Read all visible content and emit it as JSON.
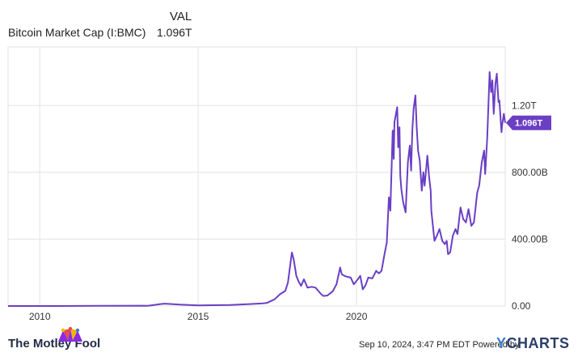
{
  "legend": {
    "column_header": "VAL",
    "series_name": "Bitcoin Market Cap (I:BMC)",
    "series_value": "1.096T"
  },
  "footer": {
    "brand": "The Motley Fool",
    "timestamp": "Sep 10, 2024, 3:47 PM EDT",
    "powered_by": "Powered by",
    "ycharts_y": "Y",
    "ycharts_rest": "CHARTS"
  },
  "colors": {
    "line": "#6a3fc4",
    "plot_bg": "#ffffff",
    "grid": "#e3e3e3",
    "badge": "#6a3fc4"
  },
  "chart_data": {
    "type": "line",
    "x_axis": {
      "type": "date",
      "range": [
        "2009-01-01",
        "2024-09-10"
      ],
      "ticks": [
        "2010",
        "2015",
        "2020"
      ]
    },
    "y_axis": {
      "range": [
        0,
        1550
      ],
      "unit": "billion USD",
      "ticks": [
        0,
        400,
        800,
        1200
      ],
      "tick_labels": [
        "0.00",
        "400.00B",
        "800.00B",
        "1.20T"
      ],
      "position": "right"
    },
    "grid": true,
    "current_value_label": "1.096T",
    "current_value": 1096,
    "series": [
      {
        "x": [
          "2009-01-01",
          "2010-07-01",
          "2012-01-01",
          "2013-04-01",
          "2013-06-01",
          "2013-11-01",
          "2013-12-15",
          "2014-06-01",
          "2015-01-01",
          "2016-01-01",
          "2016-07-01",
          "2017-01-01",
          "2017-03-01",
          "2017-06-01",
          "2017-08-01",
          "2017-10-01",
          "2017-11-01",
          "2017-12-17",
          "2018-01-06",
          "2018-02-06",
          "2018-03-01",
          "2018-04-01",
          "2018-05-05",
          "2018-06-15",
          "2018-08-01",
          "2018-09-15",
          "2018-11-20",
          "2018-12-15",
          "2019-02-01",
          "2019-04-01",
          "2019-05-15",
          "2019-06-26",
          "2019-07-15",
          "2019-08-15",
          "2019-09-15",
          "2019-10-26",
          "2019-12-01",
          "2020-01-15",
          "2020-02-13",
          "2020-03-13",
          "2020-04-15",
          "2020-05-15",
          "2020-07-01",
          "2020-08-15",
          "2020-09-15",
          "2020-10-15",
          "2020-11-15",
          "2020-12-15",
          "2021-01-08",
          "2021-01-25",
          "2021-02-21",
          "2021-03-05",
          "2021-03-13",
          "2021-04-14",
          "2021-04-25",
          "2021-05-10",
          "2021-05-19",
          "2021-06-01",
          "2021-06-22",
          "2021-07-20",
          "2021-08-15",
          "2021-09-06",
          "2021-09-21",
          "2021-10-05",
          "2021-10-20",
          "2021-11-10",
          "2021-11-25",
          "2021-12-10",
          "2021-12-30",
          "2022-01-22",
          "2022-02-10",
          "2022-02-24",
          "2022-03-28",
          "2022-04-15",
          "2022-05-05",
          "2022-05-12",
          "2022-06-18",
          "2022-07-15",
          "2022-08-14",
          "2022-09-15",
          "2022-10-15",
          "2022-11-05",
          "2022-11-21",
          "2022-12-15",
          "2023-01-15",
          "2023-02-15",
          "2023-03-10",
          "2023-04-14",
          "2023-05-15",
          "2023-06-15",
          "2023-07-15",
          "2023-08-17",
          "2023-09-15",
          "2023-10-15",
          "2023-10-24",
          "2023-11-15",
          "2023-12-15",
          "2024-01-11",
          "2024-01-23",
          "2024-02-15",
          "2024-03-01",
          "2024-03-14",
          "2024-04-01",
          "2024-04-15",
          "2024-05-01",
          "2024-05-20",
          "2024-06-05",
          "2024-06-25",
          "2024-07-05",
          "2024-07-29",
          "2024-08-05",
          "2024-08-25",
          "2024-09-10"
        ],
        "y": [
          0,
          0,
          1,
          2,
          1,
          12,
          14,
          8,
          4,
          6,
          10,
          15,
          18,
          40,
          70,
          90,
          140,
          320,
          280,
          180,
          150,
          120,
          160,
          110,
          115,
          110,
          70,
          60,
          63,
          88,
          130,
          230,
          190,
          180,
          175,
          170,
          130,
          160,
          180,
          100,
          125,
          170,
          165,
          210,
          195,
          210,
          300,
          380,
          650,
          570,
          1050,
          880,
          1100,
          1190,
          950,
          1070,
          780,
          700,
          620,
          560,
          860,
          960,
          810,
          1050,
          1180,
          1260,
          1070,
          930,
          870,
          690,
          800,
          720,
          900,
          780,
          690,
          570,
          390,
          420,
          460,
          390,
          370,
          390,
          310,
          320,
          420,
          460,
          430,
          590,
          520,
          500,
          580,
          480,
          500,
          640,
          680,
          720,
          860,
          930,
          790,
          1000,
          1210,
          1400,
          1280,
          1350,
          1150,
          1330,
          1390,
          1220,
          1230,
          1040,
          1080,
          1150,
          1096
        ]
      }
    ]
  }
}
